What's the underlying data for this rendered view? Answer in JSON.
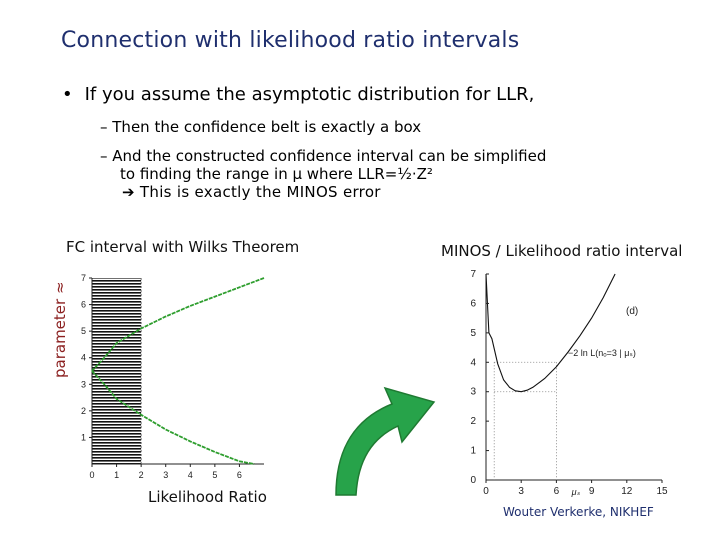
{
  "slide": {
    "title": "Connection with likelihood ratio intervals",
    "bullet": "If you assume the asymptotic distribution for LLR,",
    "bullet_mark": "•",
    "subbullets": [
      "–  Then the confidence belt is exactly a box",
      "–  And the constructed confidence interval can be simplified"
    ],
    "subbullet_cont": "to finding the range in μ where LLR=½·Z²",
    "conclusion": "➔ This is exactly the MINOS error",
    "left_caption": "FC interval with Wilks Theorem",
    "right_caption": "MINOS / Likelihood ratio interval",
    "y_axis_label": "parameter ≈",
    "x_axis_label": "Likelihood Ratio",
    "footer": "Wouter Verkerke, NIKHEF"
  },
  "chart_data": [
    {
      "type": "line",
      "panel": "left",
      "x_ticks": [
        "0",
        "1",
        "2",
        "3",
        "4",
        "5",
        "6"
      ],
      "y_ticks": [
        "1",
        "2",
        "3",
        "4",
        "5",
        "6",
        "7"
      ],
      "xlim": [
        0,
        7
      ],
      "ylim": [
        0,
        7
      ],
      "band": {
        "x_range": [
          0,
          2
        ],
        "y_range": [
          0,
          7
        ],
        "fill": "hatched"
      },
      "curves": [
        {
          "color": "#2e9e2e",
          "x": [
            7.0,
            6.0,
            5.0,
            4.0,
            3.0,
            2.0,
            1.0,
            0.5,
            0.0
          ],
          "y": [
            7.0,
            6.65,
            6.3,
            5.95,
            5.55,
            5.1,
            4.55,
            4.0,
            3.5
          ]
        },
        {
          "color": "#2e9e2e",
          "x": [
            0.0,
            0.5,
            1.0,
            2.0,
            3.0,
            4.0,
            5.0,
            6.0,
            6.6
          ],
          "y": [
            3.5,
            3.0,
            2.45,
            1.85,
            1.3,
            0.85,
            0.45,
            0.1,
            0.0
          ]
        }
      ]
    },
    {
      "type": "line",
      "panel": "right",
      "x_ticks": [
        "0",
        "3",
        "6",
        "9",
        "12",
        "15"
      ],
      "y_ticks": [
        "0",
        "1",
        "2",
        "3",
        "4",
        "5",
        "6",
        "7"
      ],
      "xlim": [
        0,
        15
      ],
      "ylim": [
        0,
        7
      ],
      "x_unit_label": "μₛ",
      "annotation": "−2 ln L(nₒ=3 | μₛ)",
      "panel_label": "(d)",
      "series": [
        {
          "x": [
            0.0,
            0.25,
            0.5,
            1.0,
            1.5,
            2.0,
            2.5,
            3.0,
            3.5,
            4.0,
            5.0,
            6.0,
            7.0,
            8.0,
            9.0,
            10.0,
            11.0
          ],
          "y": [
            7.0,
            5.0,
            4.8,
            3.95,
            3.4,
            3.15,
            3.03,
            3.0,
            3.05,
            3.15,
            3.45,
            3.85,
            4.35,
            4.9,
            5.5,
            6.2,
            7.0
          ]
        }
      ],
      "interval_markers": [
        0.7,
        6.0
      ],
      "minimum": 3
    }
  ],
  "decor": {
    "arrow_color": "#27a34a",
    "arrow_shape": "curved-up-right-arrow"
  }
}
